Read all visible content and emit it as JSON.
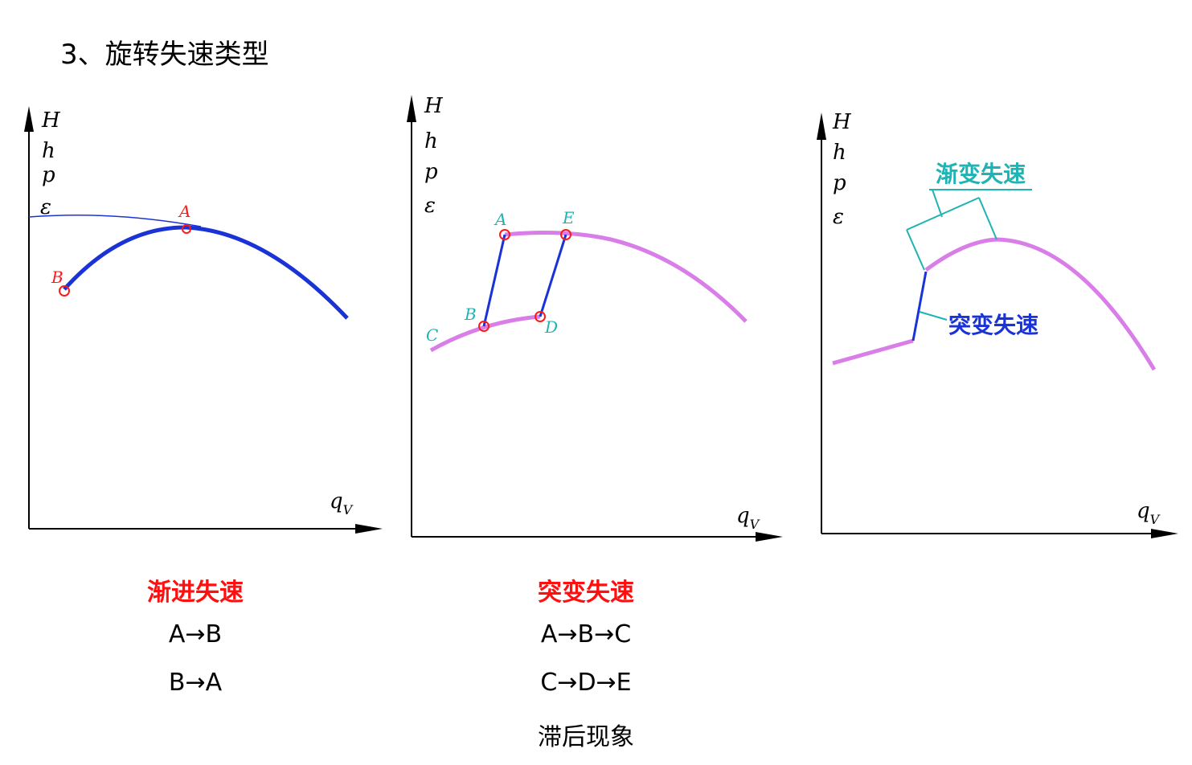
{
  "title": "3、旋转失速类型",
  "axis": {
    "y_labels": [
      "H",
      "h",
      "p",
      "ε"
    ],
    "x_label": "q",
    "x_sub": "V"
  },
  "panel1": {
    "points": [
      "A",
      "B"
    ],
    "caption_title": "渐进失速",
    "caption_lines": [
      "A→B",
      "B→A"
    ]
  },
  "panel2": {
    "points": [
      "A",
      "E",
      "B",
      "D",
      "C"
    ],
    "caption_title": "突变失速",
    "caption_lines": [
      "A→B→C",
      "C→D→E",
      "滞后现象"
    ]
  },
  "panel3": {
    "label_gradual": "渐变失速",
    "label_sudden": "突变失速"
  },
  "colors": {
    "curve_blue": "#1a33d6",
    "curve_magenta": "#d97ee8",
    "point_red": "#ff1a1a",
    "label_teal": "#1fb3b3",
    "caption_red": "#ff1010"
  }
}
